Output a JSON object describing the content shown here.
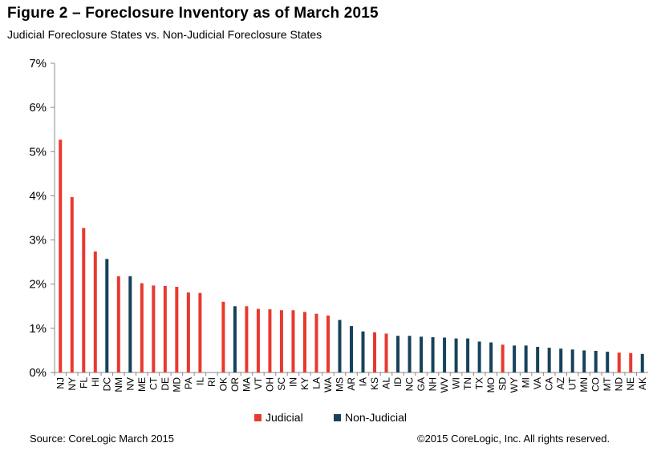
{
  "header": {
    "title": "Figure 2 – Foreclosure Inventory as of March 2015",
    "subtitle": "Judicial Foreclosure States vs. Non-Judicial Foreclosure States"
  },
  "footer": {
    "source": "Source: CoreLogic March 2015",
    "copyright": "©2015 CoreLogic, Inc. All rights reserved."
  },
  "colors": {
    "Judicial": "#e8392f",
    "Non-Judicial": "#16425b",
    "axis": "#888888"
  },
  "chart_data": {
    "type": "bar",
    "title": "Figure 2 – Foreclosure Inventory as of March 2015",
    "subtitle": "Judicial Foreclosure States vs. Non-Judicial Foreclosure States",
    "ylim": [
      0,
      7
    ],
    "ytick_values": [
      0,
      1,
      2,
      3,
      4,
      5,
      6,
      7
    ],
    "ytick_labels": [
      "0%",
      "1%",
      "2%",
      "3%",
      "4%",
      "5%",
      "6%",
      "7%"
    ],
    "unit": "%",
    "grid": false,
    "legend_position": "bottom-center",
    "legend": [
      "Judicial",
      "Non-Judicial"
    ],
    "categories": [
      "NJ",
      "NY",
      "FL",
      "HI",
      "DC",
      "NM",
      "NV",
      "ME",
      "CT",
      "DE",
      "MD",
      "PA",
      "IL",
      "RI",
      "OK",
      "OR",
      "MA",
      "VT",
      "OH",
      "SC",
      "IN",
      "KY",
      "LA",
      "WA",
      "MS",
      "AR",
      "IA",
      "KS",
      "AL",
      "ID",
      "NC",
      "GA",
      "NH",
      "WV",
      "WI",
      "TN",
      "TX",
      "MO",
      "SD",
      "WY",
      "MI",
      "VA",
      "CA",
      "AZ",
      "UT",
      "MN",
      "CO",
      "MT",
      "ND",
      "NE",
      "AK"
    ],
    "values": [
      5.27,
      3.97,
      3.27,
      2.74,
      2.57,
      2.18,
      2.18,
      2.02,
      1.97,
      1.96,
      1.94,
      1.81,
      1.8,
      0,
      1.6,
      1.5,
      1.5,
      1.44,
      1.43,
      1.41,
      1.41,
      1.37,
      1.33,
      1.29,
      1.19,
      1.05,
      0.93,
      0.91,
      0.88,
      0.83,
      0.83,
      0.81,
      0.8,
      0.79,
      0.77,
      0.77,
      0.7,
      0.68,
      0.63,
      0.61,
      0.61,
      0.58,
      0.56,
      0.54,
      0.52,
      0.5,
      0.49,
      0.47,
      0.45,
      0.44,
      0.42
    ],
    "groups": [
      "Judicial",
      "Judicial",
      "Judicial",
      "Judicial",
      "Non-Judicial",
      "Judicial",
      "Non-Judicial",
      "Judicial",
      "Judicial",
      "Judicial",
      "Judicial",
      "Judicial",
      "Judicial",
      "Non-Judicial",
      "Judicial",
      "Non-Judicial",
      "Judicial",
      "Judicial",
      "Judicial",
      "Judicial",
      "Judicial",
      "Judicial",
      "Judicial",
      "Judicial",
      "Non-Judicial",
      "Non-Judicial",
      "Non-Judicial",
      "Judicial",
      "Judicial",
      "Non-Judicial",
      "Non-Judicial",
      "Non-Judicial",
      "Non-Judicial",
      "Non-Judicial",
      "Non-Judicial",
      "Non-Judicial",
      "Non-Judicial",
      "Non-Judicial",
      "Judicial",
      "Non-Judicial",
      "Non-Judicial",
      "Non-Judicial",
      "Non-Judicial",
      "Non-Judicial",
      "Non-Judicial",
      "Non-Judicial",
      "Non-Judicial",
      "Non-Judicial",
      "Judicial",
      "Judicial",
      "Non-Judicial"
    ]
  }
}
